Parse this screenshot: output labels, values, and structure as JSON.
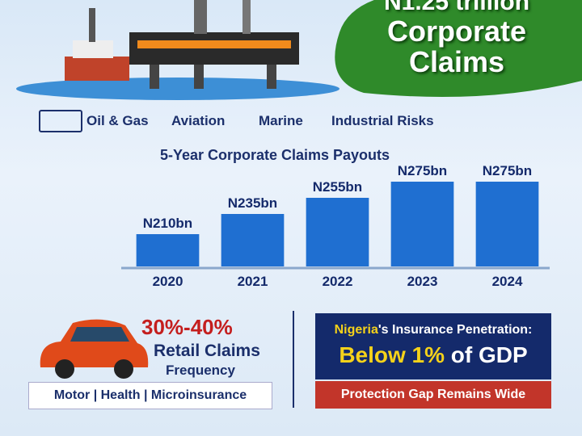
{
  "header": {
    "title_line1": "N1.25 trillion",
    "title_line2": "Corporate",
    "title_line3": "Claims"
  },
  "sectors": [
    "Oil & Gas",
    "Aviation",
    "Marine",
    "Industrial Risks"
  ],
  "chart_data": {
    "type": "bar",
    "title": "5-Year Corporate Claims Payouts",
    "categories": [
      "2020",
      "2021",
      "2022",
      "2023",
      "2024"
    ],
    "values": [
      210,
      235,
      255,
      275,
      275
    ],
    "value_labels": [
      "N210bn",
      "N235bn",
      "N255bn",
      "N275bn",
      "N275bn"
    ],
    "color": "#1f6fd1",
    "ylim": [
      170,
      290
    ]
  },
  "retail": {
    "range": "30%-40%",
    "line1": "Retail Claims",
    "line2": "Frequency",
    "lines": "Motor | Health | Microinsurance"
  },
  "penetration": {
    "country": "Nigeria",
    "label": "'s Insurance Penetration:",
    "value": "Below 1%",
    "unit": " of GDP",
    "footer": "Protection Gap Remains Wide"
  }
}
